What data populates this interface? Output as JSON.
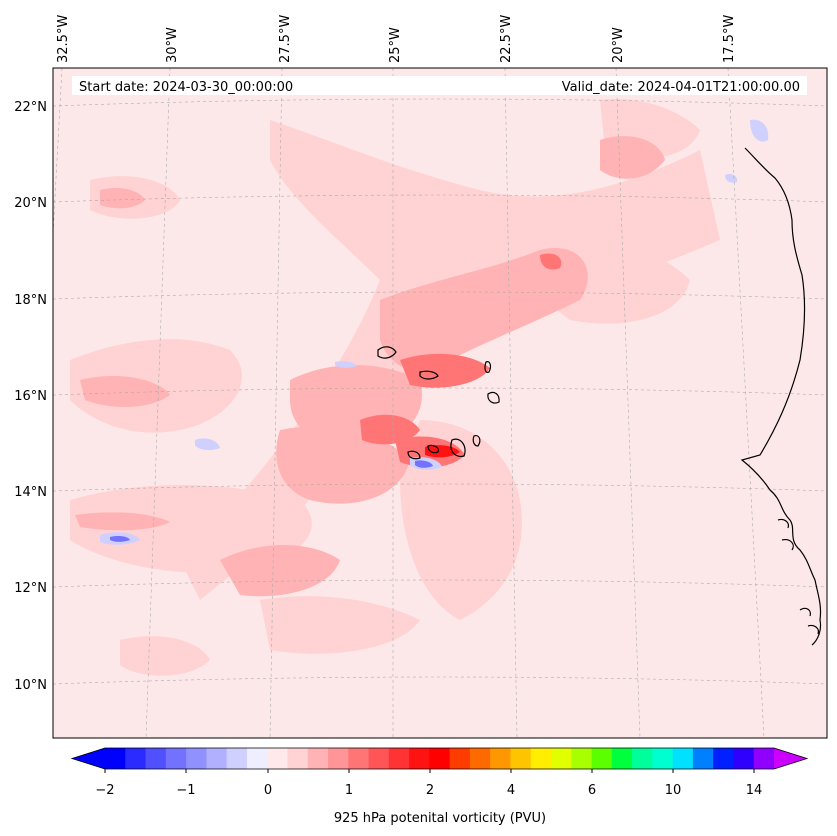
{
  "header": {
    "start_date": "Start date: 2024-03-30_00:00:00",
    "valid_date": "Valid_date: 2024-04-01T21:00:00.00"
  },
  "map": {
    "lon_labels": [
      "32.5°W",
      "30°W",
      "27.5°W",
      "25°W",
      "22.5°W",
      "20°W",
      "17.5°W"
    ],
    "lat_labels": [
      "22°N",
      "20°N",
      "18°N",
      "16°N",
      "14°N",
      "12°N",
      "10°N"
    ],
    "background_color": "#fde8e9",
    "coastline_color": "#000000"
  },
  "colorbar": {
    "label": "925 hPa potenital vorticity (PVU)",
    "tick_labels": [
      "−2",
      "−1",
      "0",
      "1",
      "2",
      "4",
      "6",
      "10",
      "14"
    ],
    "colors": [
      "#0000ff",
      "#2b2bff",
      "#5050ff",
      "#7272ff",
      "#9090ff",
      "#b0b0ff",
      "#d0d0ff",
      "#eeeeff",
      "#ffe9ea",
      "#ffd2d3",
      "#ffb3b4",
      "#ff9596",
      "#ff7576",
      "#ff5556",
      "#ff3334",
      "#ff1212",
      "#ff0000",
      "#ff3c00",
      "#ff6a00",
      "#ff9800",
      "#ffc400",
      "#ffee00",
      "#e2ff00",
      "#a8ff00",
      "#5cff00",
      "#00ff3c",
      "#00ff9a",
      "#00ffd0",
      "#00e0ff",
      "#0080ff",
      "#0020ff",
      "#3000ff",
      "#9000ff"
    ],
    "over_color": "#cc00ff",
    "under_color": "#0000ff"
  }
}
